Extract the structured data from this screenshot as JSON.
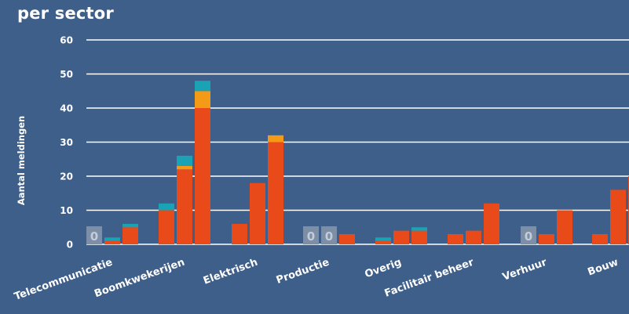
{
  "chart_data": {
    "type": "bar",
    "title": "per sector",
    "ylabel": "Aantal meldingen",
    "xlabel": "",
    "ylim": [
      0,
      60
    ],
    "yticks": [
      0,
      10,
      20,
      30,
      40,
      50,
      60
    ],
    "grid": true,
    "colors": {
      "background": "#3e5f8a",
      "grid": "#ffffff",
      "red": "#e84a1a",
      "orange": "#f59a16",
      "teal": "#1aa3b5",
      "zero_box": "#7d8fa6",
      "zero_text": "#c3ccd8"
    },
    "zero_label": "0",
    "categories": [
      "Telecommunicatie",
      "Boomkwekerijen",
      "Elektrisch",
      "Productie",
      "Overig",
      "Facilitair beheer",
      "Verhuur",
      "Bouw"
    ],
    "bars": [
      [
        {
          "red": 0,
          "orange": 0,
          "teal": 0
        },
        {
          "red": 1,
          "orange": 0,
          "teal": 1
        },
        {
          "red": 5,
          "orange": 0,
          "teal": 1
        }
      ],
      [
        {
          "red": 10,
          "orange": 0,
          "teal": 2
        },
        {
          "red": 22,
          "orange": 1,
          "teal": 3
        },
        {
          "red": 40,
          "orange": 5,
          "teal": 3
        }
      ],
      [
        {
          "red": 6,
          "orange": 0,
          "teal": 0
        },
        {
          "red": 18,
          "orange": 0,
          "teal": 0
        },
        {
          "red": 30,
          "orange": 2,
          "teal": 0
        }
      ],
      [
        {
          "red": 0,
          "orange": 0,
          "teal": 0
        },
        {
          "red": 0,
          "orange": 0,
          "teal": 0
        },
        {
          "red": 3,
          "orange": 0,
          "teal": 0
        }
      ],
      [
        {
          "red": 1,
          "orange": 0,
          "teal": 1
        },
        {
          "red": 4,
          "orange": 0,
          "teal": 0
        },
        {
          "red": 4,
          "orange": 0,
          "teal": 1
        }
      ],
      [
        {
          "red": 3,
          "orange": 0,
          "teal": 0
        },
        {
          "red": 4,
          "orange": 0,
          "teal": 0
        },
        {
          "red": 12,
          "orange": 0,
          "teal": 0
        }
      ],
      [
        {
          "red": 0,
          "orange": 0,
          "teal": 0
        },
        {
          "red": 3,
          "orange": 0,
          "teal": 0
        },
        {
          "red": 10,
          "orange": 0,
          "teal": 0
        }
      ],
      [
        {
          "red": 3,
          "orange": 0,
          "teal": 0
        },
        {
          "red": 16,
          "orange": 0,
          "teal": 0
        },
        {
          "red": 20,
          "orange": 0,
          "teal": 0
        }
      ]
    ]
  }
}
